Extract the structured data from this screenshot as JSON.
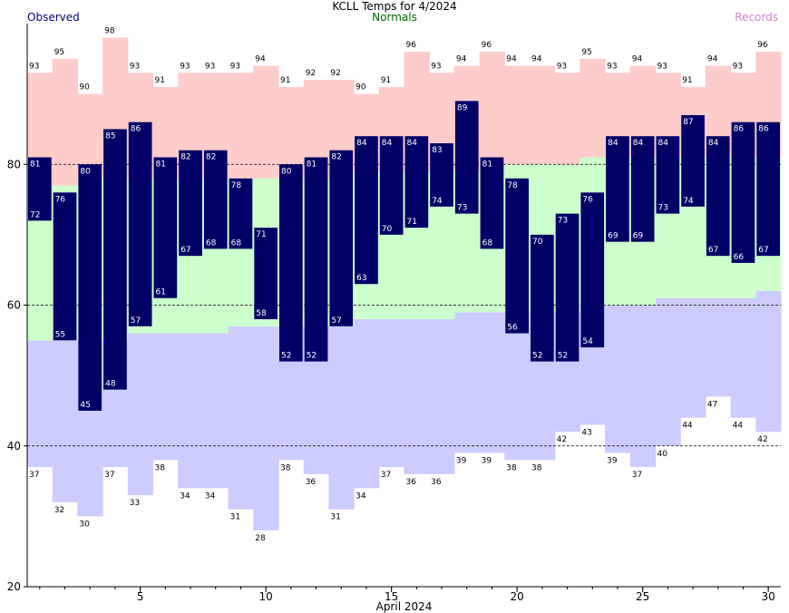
{
  "chart_data": {
    "type": "bar",
    "title": "KCLL Temps for 4/2024",
    "xlabel": "April 2024",
    "legend": {
      "observed": "Observed",
      "normals": "Normals",
      "records": "Records",
      "placement": "top"
    },
    "colors": {
      "observed": "#000066",
      "observed_legend": "#000080",
      "normals_fill": "#ccffcc",
      "normals_legend": "#006600",
      "record_high_fill": "#ffcccc",
      "record_low_fill": "#ccccff",
      "records_legend": "#cc88cc",
      "grid": "#000000"
    },
    "x_range": [
      0.5,
      30.5
    ],
    "y_range": [
      20,
      100
    ],
    "x_ticks": [
      5,
      10,
      15,
      20,
      25,
      30
    ],
    "y_ticks": [
      20,
      40,
      60,
      80
    ],
    "grid_lines_y": [
      40,
      60,
      80
    ],
    "days": [
      1,
      2,
      3,
      4,
      5,
      6,
      7,
      8,
      9,
      10,
      11,
      12,
      13,
      14,
      15,
      16,
      17,
      18,
      19,
      20,
      21,
      22,
      23,
      24,
      25,
      26,
      27,
      28,
      29,
      30
    ],
    "observed_high": [
      81,
      76,
      80,
      85,
      86,
      81,
      82,
      82,
      78,
      71,
      80,
      81,
      82,
      84,
      84,
      84,
      83,
      89,
      81,
      78,
      70,
      73,
      76,
      84,
      84,
      84,
      87,
      84,
      86,
      86
    ],
    "observed_low": [
      72,
      55,
      45,
      48,
      57,
      61,
      67,
      68,
      68,
      58,
      52,
      52,
      57,
      63,
      70,
      71,
      74,
      73,
      68,
      56,
      52,
      52,
      54,
      69,
      69,
      73,
      74,
      67,
      66,
      67
    ],
    "record_high": [
      93,
      95,
      90,
      98,
      93,
      91,
      93,
      93,
      93,
      94,
      91,
      92,
      92,
      90,
      91,
      96,
      93,
      94,
      96,
      94,
      94,
      93,
      95,
      93,
      94,
      93,
      91,
      94,
      93,
      96
    ],
    "record_low": [
      37,
      32,
      30,
      37,
      33,
      38,
      34,
      34,
      31,
      28,
      38,
      36,
      31,
      34,
      37,
      36,
      36,
      39,
      39,
      38,
      38,
      42,
      43,
      39,
      37,
      40,
      44,
      47,
      44,
      42
    ],
    "normal_high": [
      72,
      77,
      78,
      78,
      78,
      78,
      78,
      78,
      78,
      78,
      78,
      78,
      78,
      79,
      79,
      79,
      79,
      79,
      79,
      80,
      80,
      80,
      81,
      81,
      81,
      81,
      81,
      81,
      81,
      81
    ],
    "normal_low": [
      55,
      55,
      55,
      55,
      56,
      56,
      56,
      56,
      57,
      57,
      57,
      57,
      57,
      58,
      58,
      58,
      58,
      59,
      59,
      59,
      59,
      59,
      60,
      60,
      60,
      61,
      61,
      61,
      61,
      62
    ]
  }
}
